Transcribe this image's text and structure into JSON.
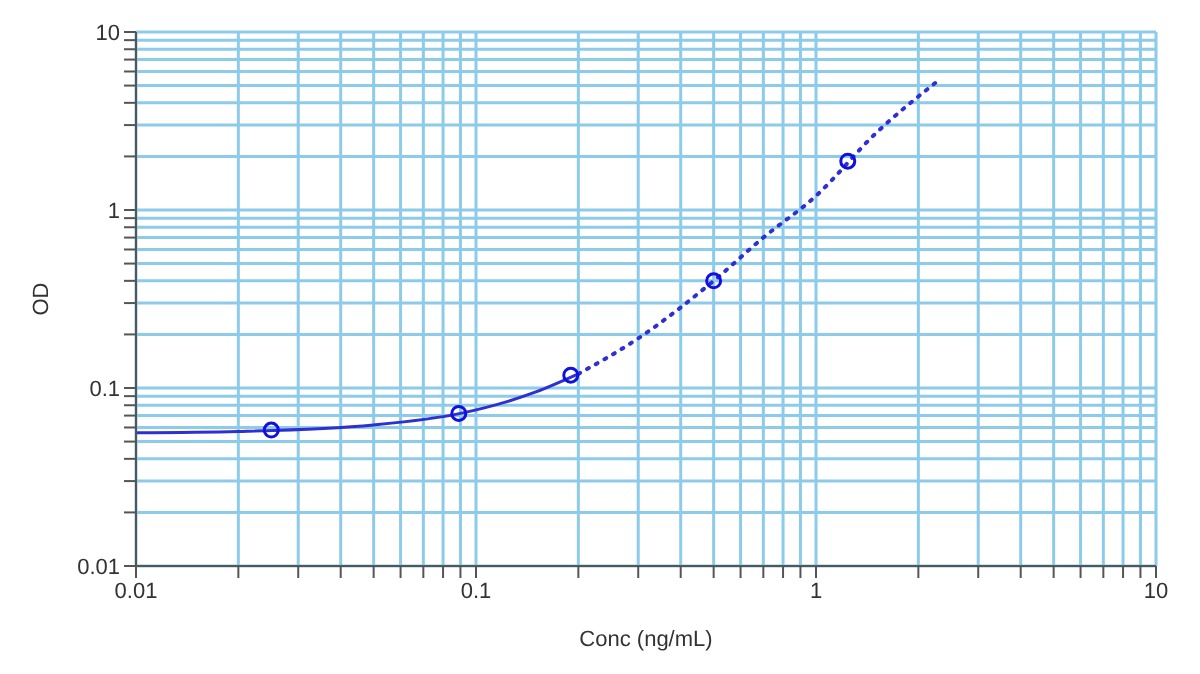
{
  "chart_data": {
    "type": "scatter",
    "xlabel": "Conc (ng/mL)",
    "ylabel": "OD",
    "log": "xy",
    "grid": true,
    "legend": false,
    "xlim": [
      0.01,
      10
    ],
    "ylim": [
      0.01,
      10
    ],
    "xticks": [
      {
        "value": 0.01,
        "label": "0.01"
      },
      {
        "value": 0.02,
        "label": null
      },
      {
        "value": 0.03,
        "label": null
      },
      {
        "value": 0.04,
        "label": null
      },
      {
        "value": 0.05,
        "label": null
      },
      {
        "value": 0.06,
        "label": null
      },
      {
        "value": 0.07,
        "label": null
      },
      {
        "value": 0.08,
        "label": null
      },
      {
        "value": 0.09,
        "label": null
      },
      {
        "value": 0.1,
        "label": "0.1"
      },
      {
        "value": 0.2,
        "label": null
      },
      {
        "value": 0.3,
        "label": null
      },
      {
        "value": 0.4,
        "label": null
      },
      {
        "value": 0.5,
        "label": null
      },
      {
        "value": 0.6,
        "label": null
      },
      {
        "value": 0.7,
        "label": null
      },
      {
        "value": 0.8,
        "label": null
      },
      {
        "value": 0.9,
        "label": null
      },
      1,
      {
        "value": 2,
        "label": null
      },
      {
        "value": 3,
        "label": null
      },
      {
        "value": 4,
        "label": null
      },
      {
        "value": 5,
        "label": null
      },
      {
        "value": 6,
        "label": null
      },
      {
        "value": 7,
        "label": null
      },
      {
        "value": 8,
        "label": null
      },
      {
        "value": 9,
        "label": null
      },
      10
    ],
    "yticks": [
      {
        "value": 0.01,
        "label": "0.01"
      },
      {
        "value": 0.02,
        "label": null
      },
      {
        "value": 0.03,
        "label": null
      },
      {
        "value": 0.04,
        "label": null
      },
      {
        "value": 0.05,
        "label": null
      },
      {
        "value": 0.06,
        "label": null
      },
      {
        "value": 0.07,
        "label": null
      },
      {
        "value": 0.08,
        "label": null
      },
      {
        "value": 0.09,
        "label": null
      },
      {
        "value": 0.1,
        "label": "0.1"
      },
      {
        "value": 0.2,
        "label": null
      },
      {
        "value": 0.3,
        "label": null
      },
      {
        "value": 0.4,
        "label": null
      },
      {
        "value": 0.5,
        "label": null
      },
      {
        "value": 0.6,
        "label": null
      },
      {
        "value": 0.7,
        "label": null
      },
      {
        "value": 0.8,
        "label": null
      },
      {
        "value": 0.9,
        "label": null
      },
      1,
      {
        "value": 2,
        "label": null
      },
      {
        "value": 3,
        "label": null
      },
      {
        "value": 4,
        "label": null
      },
      {
        "value": 5,
        "label": null
      },
      {
        "value": 6,
        "label": null
      },
      {
        "value": 7,
        "label": null
      },
      {
        "value": 8,
        "label": null
      },
      {
        "value": 9,
        "label": null
      },
      10
    ],
    "series": [
      {
        "type": "line",
        "color": "#3030d0",
        "marker": "none",
        "line_style": "solid",
        "x": [
          0.01,
          0.02,
          0.05,
          0.09,
          0.15,
          0.2
        ],
        "values": [
          0.056,
          0.057,
          0.062,
          0.072,
          0.095,
          0.12
        ]
      },
      {
        "type": "line",
        "color": "#3030d0",
        "marker": "none",
        "line_style": "dotted",
        "x": [
          0.2,
          0.3,
          0.5,
          0.7,
          1,
          1.5,
          2.25
        ],
        "values": [
          0.12,
          0.19,
          0.4,
          0.7,
          1.2,
          2.7,
          5.2
        ]
      },
      {
        "color": "#1010e0",
        "marker": "circle",
        "x": [
          0.025,
          0.089,
          0.19,
          0.5,
          1.24
        ],
        "values": [
          0.058,
          0.072,
          0.118,
          0.4,
          1.88
        ]
      }
    ]
  }
}
